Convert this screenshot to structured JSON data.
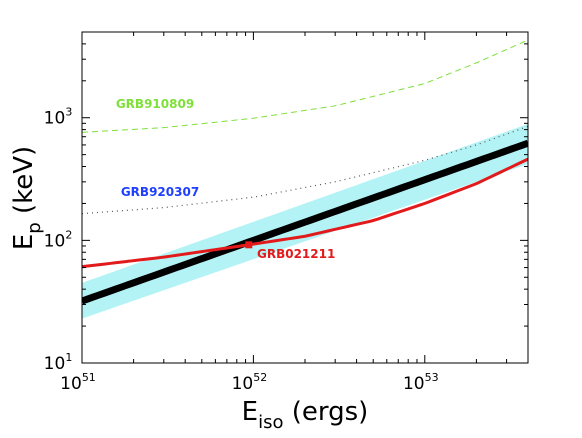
{
  "chart_data": {
    "type": "line",
    "x_scale": "log",
    "y_scale": "log",
    "xlim": [
      1e+51,
      4e+53
    ],
    "ylim": [
      10,
      5000
    ],
    "x_ticks": [
      {
        "value": 1e+51,
        "base": "10",
        "exp": "51"
      },
      {
        "value": 1e+52,
        "base": "10",
        "exp": "52"
      },
      {
        "value": 1e+53,
        "base": "10",
        "exp": "53"
      }
    ],
    "y_ticks": [
      {
        "value": 10,
        "base": "10",
        "exp": "1"
      },
      {
        "value": 100,
        "base": "10",
        "exp": "2"
      },
      {
        "value": 1000,
        "base": "10",
        "exp": "3"
      }
    ],
    "xlabel": {
      "main": "E",
      "sub": "iso",
      "unit": " (ergs)"
    },
    "ylabel": {
      "main": "E",
      "sub": "p",
      "unit": " (keV)"
    },
    "grid": false,
    "colors": {
      "band": "#b3f3f5",
      "fit": "#000000",
      "grb021211": "#e31a1c",
      "grb910809": "#7fe03a",
      "grb920307": "#1f3fff",
      "grb920307_curve": "#555555"
    },
    "band": {
      "x": [
        1e+51,
        4e+53
      ],
      "lower": [
        23,
        420
      ],
      "upper": [
        45,
        890
      ]
    },
    "series": [
      {
        "id": "fit",
        "style": "solid-thick",
        "x": [
          1e+51,
          4e+53
        ],
        "y": [
          32,
          620
        ]
      },
      {
        "id": "grb021211",
        "name": "GRB021211",
        "style": "solid",
        "x": [
          1e+51,
          3e+51,
          6e+51,
          9.4e+51,
          2e+52,
          5e+52,
          1e+53,
          2e+53,
          4e+53
        ],
        "y": [
          61,
          73,
          84,
          92,
          108,
          145,
          200,
          290,
          460
        ]
      },
      {
        "id": "grb910809",
        "name": "GRB910809",
        "style": "dashed",
        "x": [
          1e+51,
          3e+51,
          1e+52,
          3e+52,
          1e+53,
          2e+53,
          4e+53
        ],
        "y": [
          760,
          830,
          990,
          1250,
          1900,
          2800,
          4300
        ]
      },
      {
        "id": "grb920307",
        "name": "GRB920307",
        "style": "dotted",
        "x": [
          1e+51,
          3e+51,
          1e+52,
          3e+52,
          1e+53,
          2e+53,
          4e+53
        ],
        "y": [
          165,
          185,
          225,
          300,
          450,
          600,
          850
        ]
      }
    ],
    "marker": {
      "x": 9.4e+51,
      "y": 92,
      "series": "grb021211"
    },
    "annotations": [
      {
        "id": "ann-910809",
        "text": "GRB910809",
        "series": "grb910809"
      },
      {
        "id": "ann-920307",
        "text": "GRB920307",
        "series": "grb920307"
      },
      {
        "id": "ann-021211",
        "text": "GRB021211",
        "series": "grb021211"
      }
    ]
  }
}
